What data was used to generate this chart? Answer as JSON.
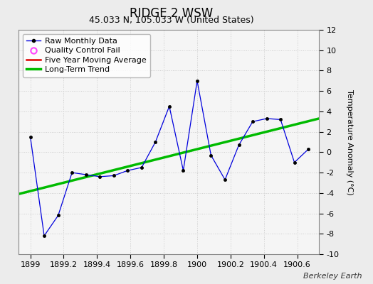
{
  "title": "RIDGE 2 WSW",
  "subtitle": "45.033 N, 105.033 W (United States)",
  "ylabel": "Temperature Anomaly (°C)",
  "credit": "Berkeley Earth",
  "xlim": [
    1898.93,
    1900.73
  ],
  "ylim": [
    -10,
    12
  ],
  "yticks": [
    -10,
    -8,
    -6,
    -4,
    -2,
    0,
    2,
    4,
    6,
    8,
    10,
    12
  ],
  "xticks": [
    1899,
    1899.2,
    1899.4,
    1899.6,
    1899.8,
    1900,
    1900.2,
    1900.4,
    1900.6
  ],
  "xtick_labels": [
    "1899",
    "1899.2",
    "1899.4",
    "1899.6",
    "1899.8",
    "1900",
    "1900.2",
    "1900.4",
    "1900.6"
  ],
  "raw_x": [
    1899.0,
    1899.083,
    1899.167,
    1899.25,
    1899.333,
    1899.417,
    1899.5,
    1899.583,
    1899.667,
    1899.75,
    1899.833,
    1899.917,
    1900.0,
    1900.083,
    1900.167,
    1900.25,
    1900.333,
    1900.417,
    1900.5,
    1900.583,
    1900.667
  ],
  "raw_y": [
    1.5,
    -8.2,
    -6.2,
    -2.0,
    -2.2,
    -2.4,
    -2.3,
    -1.8,
    -1.5,
    1.0,
    4.5,
    -1.8,
    7.0,
    -0.3,
    -2.7,
    0.7,
    3.0,
    3.3,
    3.2,
    -1.0,
    0.3
  ],
  "trend_x": [
    1898.93,
    1900.73
  ],
  "trend_y": [
    -4.1,
    3.3
  ],
  "outer_bg": "#ececec",
  "plot_bg_color": "#f5f5f5",
  "raw_line_color": "#0000dd",
  "marker_color": "#000000",
  "trend_color": "#00bb00",
  "moving_avg_color": "#dd0000",
  "qc_color": "#ff44ff",
  "legend_bg": "#ffffff",
  "grid_color": "#cccccc",
  "title_fontsize": 12,
  "subtitle_fontsize": 9,
  "label_fontsize": 8,
  "tick_fontsize": 8,
  "credit_fontsize": 8
}
